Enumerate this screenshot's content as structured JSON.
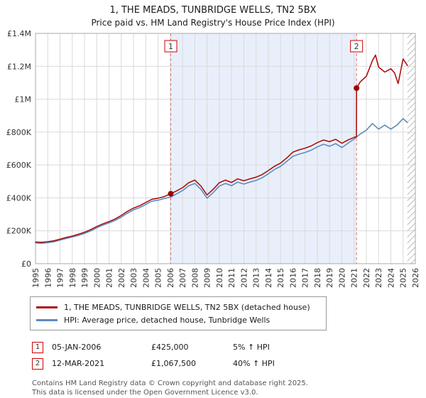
{
  "title": "1, THE MEADS, TUNBRIDGE WELLS, TN2 5BX",
  "subtitle": "Price paid vs. HM Land Registry's House Price Index (HPI)",
  "chart_data": {
    "type": "line",
    "title": "1, THE MEADS, TUNBRIDGE WELLS, TN2 5BX — Price paid vs. HPI",
    "xlabel": "",
    "ylabel": "",
    "grid": true,
    "legend_position": "bottom",
    "x_range": [
      1995,
      2026
    ],
    "y_range": [
      0,
      1400000
    ],
    "x_ticks": [
      1995,
      1996,
      1997,
      1998,
      1999,
      2000,
      2001,
      2002,
      2003,
      2004,
      2005,
      2006,
      2007,
      2008,
      2009,
      2010,
      2011,
      2012,
      2013,
      2014,
      2015,
      2016,
      2017,
      2018,
      2019,
      2020,
      2021,
      2022,
      2023,
      2024,
      2025,
      2026
    ],
    "y_ticks": [
      {
        "value": 0,
        "label": "£0"
      },
      {
        "value": 200000,
        "label": "£200K"
      },
      {
        "value": 400000,
        "label": "£400K"
      },
      {
        "value": 600000,
        "label": "£600K"
      },
      {
        "value": 800000,
        "label": "£800K"
      },
      {
        "value": 1000000,
        "label": "£1M"
      },
      {
        "value": 1200000,
        "label": "£1.2M"
      },
      {
        "value": 1400000,
        "label": "£1.4M"
      }
    ],
    "shaded_region": {
      "from": 2006.04,
      "to": 2021.2
    },
    "hatched_region": {
      "from": 2025.35,
      "to": 2026
    },
    "colors": {
      "grid": "#d9d9d9",
      "shade": "#e9effa",
      "dashed": "#dd7777",
      "hatch": "#bbbbbb",
      "plot_border": "#aaaaaa",
      "marker_box_border": "#cc0000",
      "sale_dot": "#a00000"
    },
    "series": [
      {
        "id": "price-paid",
        "name": "1, THE MEADS, TUNBRIDGE WELLS, TN2 5BX (detached house)",
        "color": "#aa1111",
        "points": [
          [
            1995,
            132000
          ],
          [
            1995.5,
            130000
          ],
          [
            1996,
            134000
          ],
          [
            1996.5,
            139000
          ],
          [
            1997,
            149000
          ],
          [
            1997.5,
            159000
          ],
          [
            1998,
            168000
          ],
          [
            1998.5,
            179000
          ],
          [
            1999,
            191000
          ],
          [
            1999.5,
            207000
          ],
          [
            2000,
            226000
          ],
          [
            2000.5,
            242000
          ],
          [
            2001,
            256000
          ],
          [
            2001.5,
            272000
          ],
          [
            2002,
            293000
          ],
          [
            2002.5,
            318000
          ],
          [
            2003,
            338000
          ],
          [
            2003.5,
            352000
          ],
          [
            2004,
            372000
          ],
          [
            2004.5,
            392000
          ],
          [
            2005,
            398000
          ],
          [
            2005.5,
            408000
          ],
          [
            2006.04,
            425000
          ],
          [
            2006.5,
            442000
          ],
          [
            2007,
            462000
          ],
          [
            2007.5,
            492000
          ],
          [
            2008,
            508000
          ],
          [
            2008.5,
            472000
          ],
          [
            2009,
            418000
          ],
          [
            2009.5,
            452000
          ],
          [
            2010,
            492000
          ],
          [
            2010.5,
            508000
          ],
          [
            2011,
            494000
          ],
          [
            2011.5,
            516000
          ],
          [
            2012,
            504000
          ],
          [
            2012.5,
            516000
          ],
          [
            2013,
            526000
          ],
          [
            2013.5,
            542000
          ],
          [
            2014,
            566000
          ],
          [
            2014.5,
            592000
          ],
          [
            2015,
            612000
          ],
          [
            2015.5,
            642000
          ],
          [
            2016,
            678000
          ],
          [
            2016.5,
            692000
          ],
          [
            2017,
            702000
          ],
          [
            2017.5,
            716000
          ],
          [
            2018,
            736000
          ],
          [
            2018.5,
            752000
          ],
          [
            2019,
            742000
          ],
          [
            2019.5,
            756000
          ],
          [
            2020,
            732000
          ],
          [
            2020.5,
            752000
          ],
          [
            2021,
            768000
          ],
          [
            2021.19,
            772000
          ],
          [
            2021.2,
            1067500
          ],
          [
            2021.5,
            1105000
          ],
          [
            2022,
            1140000
          ],
          [
            2022.5,
            1235000
          ],
          [
            2022.75,
            1268000
          ],
          [
            2023,
            1195000
          ],
          [
            2023.5,
            1165000
          ],
          [
            2024,
            1185000
          ],
          [
            2024.3,
            1160000
          ],
          [
            2024.6,
            1095000
          ],
          [
            2025,
            1245000
          ],
          [
            2025.35,
            1205000
          ]
        ]
      },
      {
        "id": "hpi",
        "name": "HPI: Average price, detached house, Tunbridge Wells",
        "color": "#5b8cbe",
        "points": [
          [
            1995,
            126000
          ],
          [
            1995.5,
            124000
          ],
          [
            1996,
            128000
          ],
          [
            1996.5,
            133000
          ],
          [
            1997,
            143000
          ],
          [
            1997.5,
            153000
          ],
          [
            1998,
            162000
          ],
          [
            1998.5,
            172000
          ],
          [
            1999,
            184000
          ],
          [
            1999.5,
            199000
          ],
          [
            2000,
            218000
          ],
          [
            2000.5,
            234000
          ],
          [
            2001,
            248000
          ],
          [
            2001.5,
            263000
          ],
          [
            2002,
            283000
          ],
          [
            2002.5,
            307000
          ],
          [
            2003,
            327000
          ],
          [
            2003.5,
            341000
          ],
          [
            2004,
            360000
          ],
          [
            2004.5,
            380000
          ],
          [
            2005,
            386000
          ],
          [
            2005.5,
            396000
          ],
          [
            2006.04,
            405000
          ],
          [
            2006.5,
            424000
          ],
          [
            2007,
            444000
          ],
          [
            2007.5,
            473000
          ],
          [
            2008,
            488000
          ],
          [
            2008.5,
            452000
          ],
          [
            2009,
            398000
          ],
          [
            2009.5,
            432000
          ],
          [
            2010,
            472000
          ],
          [
            2010.5,
            488000
          ],
          [
            2011,
            474000
          ],
          [
            2011.5,
            496000
          ],
          [
            2012,
            484000
          ],
          [
            2012.5,
            496000
          ],
          [
            2013,
            506000
          ],
          [
            2013.5,
            522000
          ],
          [
            2014,
            546000
          ],
          [
            2014.5,
            572000
          ],
          [
            2015,
            592000
          ],
          [
            2015.5,
            622000
          ],
          [
            2016,
            652000
          ],
          [
            2016.5,
            666000
          ],
          [
            2017,
            676000
          ],
          [
            2017.5,
            690000
          ],
          [
            2018,
            710000
          ],
          [
            2018.5,
            726000
          ],
          [
            2019,
            714000
          ],
          [
            2019.5,
            730000
          ],
          [
            2020,
            706000
          ],
          [
            2020.5,
            732000
          ],
          [
            2021,
            758000
          ],
          [
            2021.5,
            788000
          ],
          [
            2022,
            812000
          ],
          [
            2022.5,
            852000
          ],
          [
            2023,
            818000
          ],
          [
            2023.5,
            842000
          ],
          [
            2024,
            818000
          ],
          [
            2024.5,
            842000
          ],
          [
            2025,
            882000
          ],
          [
            2025.35,
            858000
          ]
        ]
      }
    ],
    "markers": [
      {
        "label": "1",
        "x": 2006.04,
        "y": 425000
      },
      {
        "label": "2",
        "x": 2021.2,
        "y": 1067500
      }
    ]
  },
  "legend": [
    {
      "label": "1, THE MEADS, TUNBRIDGE WELLS, TN2 5BX (detached house)"
    },
    {
      "label": "HPI: Average price, detached house, Tunbridge Wells"
    }
  ],
  "annotations": [
    {
      "marker": "1",
      "date": "05-JAN-2006",
      "price": "£425,000",
      "hpi": "5% ↑ HPI"
    },
    {
      "marker": "2",
      "date": "12-MAR-2021",
      "price": "£1,067,500",
      "hpi": "40% ↑ HPI"
    }
  ],
  "footer": {
    "line1": "Contains HM Land Registry data © Crown copyright and database right 2025.",
    "line2": "This data is licensed under the Open Government Licence v3.0."
  }
}
